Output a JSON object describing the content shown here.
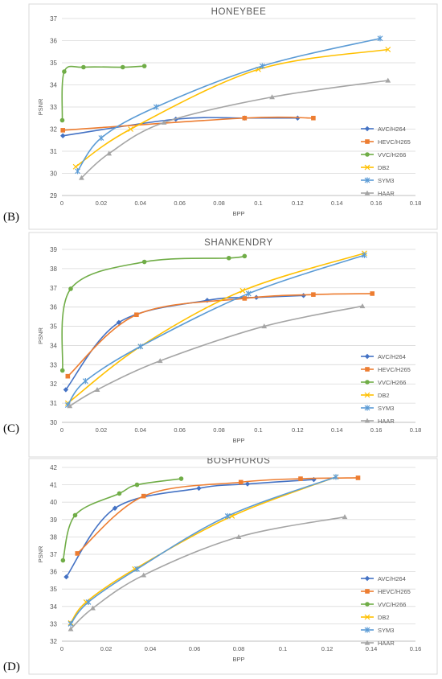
{
  "panels": [
    {
      "letter": "(B)",
      "chart_data": {
        "type": "line",
        "title": "HONEYBEE",
        "xlabel": "BPP",
        "ylabel": "PSNR",
        "xlim": [
          0,
          0.18
        ],
        "ylim": [
          29,
          37
        ],
        "xticks": [
          0,
          0.02,
          0.04,
          0.06,
          0.08,
          0.1,
          0.12,
          0.14,
          0.16,
          0.18
        ],
        "xtick_labels": [
          "0",
          "0.02",
          "0.04",
          "0.06",
          "0.08",
          "0.1",
          "0.12",
          "0.14",
          "0.16",
          "0.18"
        ],
        "yticks": [
          29,
          30,
          31,
          32,
          33,
          34,
          35,
          36,
          37
        ],
        "ytick_labels": [
          "29",
          "30",
          "31",
          "32",
          "33",
          "34",
          "35",
          "36",
          "37"
        ],
        "legend_position": "right",
        "grid": "horizontal",
        "series": [
          {
            "name": "AVC/H264",
            "color": "#4472C4",
            "marker": "diamond",
            "x": [
              0.0005,
              0.058,
              0.093,
              0.12
            ],
            "y": [
              31.7,
              32.45,
              32.5,
              32.5
            ]
          },
          {
            "name": "HEVC/H265",
            "color": "#ED7D31",
            "marker": "square",
            "x": [
              0.0005,
              0.093,
              0.128
            ],
            "y": [
              31.95,
              32.5,
              32.5
            ]
          },
          {
            "name": "VVC/H266",
            "color": "#70AD47",
            "marker": "circle",
            "x": [
              0.0002,
              0.0012,
              0.011,
              0.031,
              0.042
            ],
            "y": [
              32.4,
              34.6,
              34.8,
              34.8,
              34.85
            ]
          },
          {
            "name": "DB2",
            "color": "#FFC000",
            "marker": "x",
            "x": [
              0.007,
              0.035,
              0.1,
              0.166
            ],
            "y": [
              30.3,
              32.0,
              34.7,
              35.6
            ]
          },
          {
            "name": "SYM3",
            "color": "#5B9BD5",
            "marker": "star",
            "x": [
              0.008,
              0.02,
              0.048,
              0.102,
              0.162
            ],
            "y": [
              30.1,
              31.6,
              33.0,
              34.85,
              36.1
            ]
          },
          {
            "name": "HAAR",
            "color": "#A5A5A5",
            "marker": "triangle",
            "x": [
              0.01,
              0.024,
              0.052,
              0.107,
              0.166
            ],
            "y": [
              29.8,
              30.9,
              32.3,
              33.45,
              34.2
            ]
          }
        ]
      }
    },
    {
      "letter": "(C)",
      "chart_data": {
        "type": "line",
        "title": "SHANKENDRY",
        "xlabel": "BPP",
        "ylabel": "PSNR",
        "xlim": [
          0,
          0.18
        ],
        "ylim": [
          30,
          39
        ],
        "xticks": [
          0,
          0.02,
          0.04,
          0.06,
          0.08,
          0.1,
          0.12,
          0.14,
          0.16,
          0.18
        ],
        "xtick_labels": [
          "0",
          "0.02",
          "0.04",
          "0.06",
          "0.08",
          "0.1",
          "0.12",
          "0.14",
          "0.16",
          "0.18"
        ],
        "yticks": [
          30,
          31,
          32,
          33,
          34,
          35,
          36,
          37,
          38,
          39
        ],
        "ytick_labels": [
          "30",
          "31",
          "32",
          "33",
          "34",
          "35",
          "36",
          "37",
          "38",
          "39"
        ],
        "legend_position": "right",
        "grid": "horizontal",
        "series": [
          {
            "name": "AVC/H264",
            "color": "#4472C4",
            "marker": "diamond",
            "x": [
              0.002,
              0.029,
              0.074,
              0.099,
              0.123
            ],
            "y": [
              31.7,
              35.2,
              36.35,
              36.5,
              36.6
            ]
          },
          {
            "name": "HEVC/H265",
            "color": "#ED7D31",
            "marker": "square",
            "x": [
              0.003,
              0.038,
              0.093,
              0.128,
              0.158
            ],
            "y": [
              32.4,
              35.6,
              36.45,
              36.65,
              36.7
            ]
          },
          {
            "name": "VVC/H266",
            "color": "#70AD47",
            "marker": "circle",
            "x": [
              0.0003,
              0.0045,
              0.042,
              0.085,
              0.093
            ],
            "y": [
              32.7,
              36.95,
              38.35,
              38.55,
              38.65
            ]
          },
          {
            "name": "DB2",
            "color": "#FFC000",
            "marker": "x",
            "x": [
              0.003,
              0.04,
              0.092,
              0.154
            ],
            "y": [
              31.0,
              33.95,
              36.85,
              38.8
            ]
          },
          {
            "name": "SYM3",
            "color": "#5B9BD5",
            "marker": "star",
            "x": [
              0.003,
              0.012,
              0.04,
              0.095,
              0.154
            ],
            "y": [
              30.9,
              32.15,
              33.95,
              36.7,
              38.7
            ]
          },
          {
            "name": "HAAR",
            "color": "#A5A5A5",
            "marker": "triangle",
            "x": [
              0.004,
              0.018,
              0.05,
              0.103,
              0.153
            ],
            "y": [
              30.85,
              31.7,
              33.2,
              35.0,
              36.05
            ]
          }
        ]
      }
    },
    {
      "letter": "(D)",
      "chart_data": {
        "type": "line",
        "title": "BOSPHORUS",
        "xlabel": "BPP",
        "ylabel": "PSNR",
        "xlim": [
          0,
          0.16
        ],
        "ylim": [
          32,
          42
        ],
        "xticks": [
          0,
          0.02,
          0.04,
          0.06,
          0.08,
          0.1,
          0.12,
          0.14,
          0.16
        ],
        "xtick_labels": [
          "0",
          "0.02",
          "0.04",
          "0.06",
          "0.08",
          "0.1",
          "0.12",
          "0.14",
          "0.16"
        ],
        "yticks": [
          32,
          33,
          34,
          35,
          36,
          37,
          38,
          39,
          40,
          41,
          42
        ],
        "ytick_labels": [
          "32",
          "33",
          "34",
          "35",
          "36",
          "37",
          "38",
          "39",
          "40",
          "41",
          "42"
        ],
        "legend_position": "right",
        "grid": "horizontal",
        "series": [
          {
            "name": "AVC/H264",
            "color": "#4472C4",
            "marker": "diamond",
            "x": [
              0.002,
              0.024,
              0.062,
              0.084,
              0.114
            ],
            "y": [
              35.7,
              39.65,
              40.8,
              41.05,
              41.3
            ]
          },
          {
            "name": "HEVC/H265",
            "color": "#ED7D31",
            "marker": "square",
            "x": [
              0.007,
              0.037,
              0.081,
              0.108,
              0.134
            ],
            "y": [
              37.05,
              40.35,
              41.15,
              41.35,
              41.4
            ]
          },
          {
            "name": "VVC/H266",
            "color": "#70AD47",
            "marker": "circle",
            "x": [
              0.0005,
              0.006,
              0.026,
              0.034,
              0.054
            ],
            "y": [
              36.65,
              39.25,
              40.5,
              41.0,
              41.35
            ]
          },
          {
            "name": "DB2",
            "color": "#FFC000",
            "marker": "x",
            "x": [
              0.004,
              0.011,
              0.033,
              0.077,
              0.124
            ],
            "y": [
              33.05,
              34.25,
              36.15,
              39.2,
              41.45
            ]
          },
          {
            "name": "SYM3",
            "color": "#5B9BD5",
            "marker": "star",
            "x": [
              0.004,
              0.012,
              0.034,
              0.075,
              0.124
            ],
            "y": [
              33.0,
              34.25,
              36.15,
              39.2,
              41.45
            ]
          },
          {
            "name": "HAAR",
            "color": "#A5A5A5",
            "marker": "triangle",
            "x": [
              0.004,
              0.014,
              0.037,
              0.08,
              0.128
            ],
            "y": [
              32.7,
              33.9,
              35.8,
              38.0,
              39.15
            ]
          }
        ]
      }
    }
  ]
}
